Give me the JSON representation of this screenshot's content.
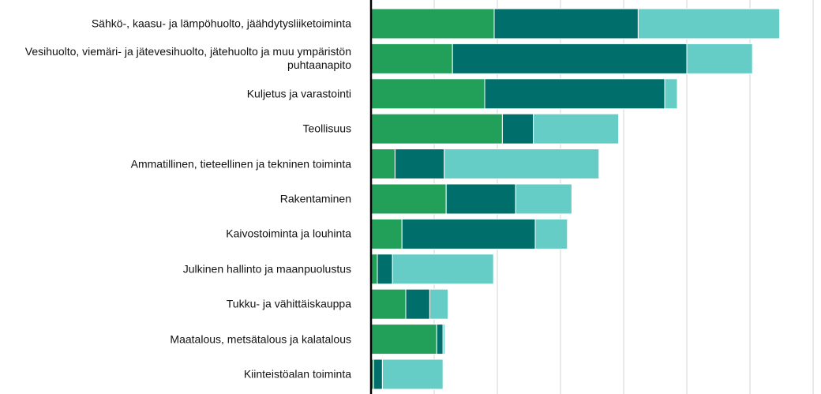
{
  "chart_data": {
    "type": "stacked_bar_horizontal",
    "categories": [
      "Sähkö-, kaasu- ja lämpöhuolto, jäähdytysliiketoiminta",
      "Vesihuolto, viemäri- ja jätevesihuolto, jätehuolto ja muu ympäristön puhtaanapito",
      "Kuljetus ja varastointi",
      "Teollisuus",
      "Ammatillinen, tieteellinen ja tekninen toiminta",
      "Rakentaminen",
      "Kaivostoiminta ja louhinta",
      "Julkinen hallinto ja maanpuolustus",
      "Tukku- ja vähittäiskauppa",
      "Maatalous, metsätalous ja kalatalous",
      "Kiinteistöalan toiminta"
    ],
    "series": [
      {
        "color": "#22a05a",
        "values": [
          1.95,
          1.29,
          1.8,
          2.08,
          0.38,
          1.19,
          0.49,
          0.1,
          0.55,
          1.04,
          0.04
        ]
      },
      {
        "color": "#006e6a",
        "values": [
          2.28,
          3.71,
          2.85,
          0.49,
          0.78,
          1.1,
          2.11,
          0.24,
          0.38,
          0.1,
          0.14
        ]
      },
      {
        "color": "#66ccc6",
        "values": [
          2.24,
          1.04,
          0.2,
          1.35,
          2.45,
          0.89,
          0.51,
          1.6,
          0.29,
          0.03,
          0.96
        ]
      }
    ],
    "xlim": [
      0,
      7
    ],
    "xticks": [
      0,
      1,
      2,
      3,
      4,
      5,
      6,
      7
    ],
    "grid": true
  }
}
